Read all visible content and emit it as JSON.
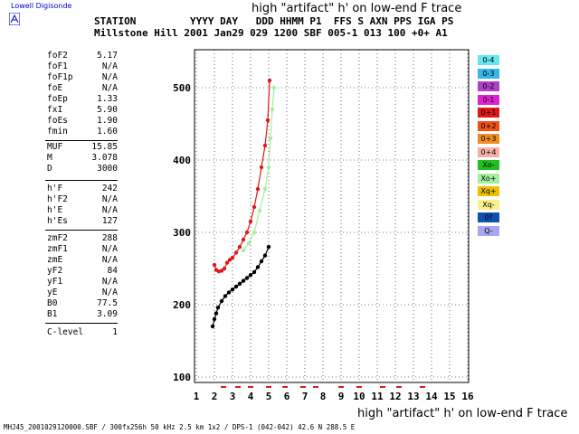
{
  "logo": {
    "text": "Lowell Digisonde"
  },
  "header": {
    "row1": "STATION         YYYY DAY   DDD HHMM P1  FFS S AXN PPS IGA PS",
    "row2": "Millstone Hill 2001 Jan29 029 1200 SBF 005-1 013 100 +0+ A1"
  },
  "title_top": "high \"artifact\" h' on low-end F trace",
  "title_bottom": "high \"artifact\" h' on low-end F trace",
  "params": [
    {
      "key": "foF2",
      "val": "5.17"
    },
    {
      "key": "foF1",
      "val": "N/A"
    },
    {
      "key": "foF1p",
      "val": "N/A"
    },
    {
      "key": "foE",
      "val": "N/A"
    },
    {
      "key": "foEp",
      "val": "1.33"
    },
    {
      "key": "fxI",
      "val": "5.90"
    },
    {
      "key": "foEs",
      "val": "1.90"
    },
    {
      "key": "fmin",
      "val": "1.60"
    },
    {
      "key": "MUF",
      "val": "15.85"
    },
    {
      "key": "M",
      "val": "3.078"
    },
    {
      "key": "D",
      "val": "3000"
    },
    {
      "key": "h'F",
      "val": "242"
    },
    {
      "key": "h'F2",
      "val": "N/A"
    },
    {
      "key": "h'E",
      "val": "N/A"
    },
    {
      "key": "h'Es",
      "val": "127"
    },
    {
      "key": "zmF2",
      "val": "288"
    },
    {
      "key": "zmF1",
      "val": "N/A"
    },
    {
      "key": "zmE",
      "val": "N/A"
    },
    {
      "key": "yF2",
      "val": "84"
    },
    {
      "key": "yF1",
      "val": "N/A"
    },
    {
      "key": "yE",
      "val": "N/A"
    },
    {
      "key": "B0",
      "val": "77.5"
    },
    {
      "key": "B1",
      "val": "3.09"
    },
    {
      "key": "C-level",
      "val": "1"
    }
  ],
  "legend": [
    {
      "label": "0-4",
      "color": "#66e6f0"
    },
    {
      "label": "0-3",
      "color": "#33b8e8"
    },
    {
      "label": "0-2",
      "color": "#b040c8"
    },
    {
      "label": "0-1",
      "color": "#e020d0"
    },
    {
      "label": "0+1",
      "color": "#e01818"
    },
    {
      "label": "0+2",
      "color": "#f05010"
    },
    {
      "label": "0+3",
      "color": "#f08c20"
    },
    {
      "label": "0+4",
      "color": "#f8b0a8"
    },
    {
      "label": "Xo-",
      "color": "#20c020"
    },
    {
      "label": "Xo+",
      "color": "#a0f0a0"
    },
    {
      "label": "Xq+",
      "color": "#f0c000"
    },
    {
      "label": "Xq-",
      "color": "#f8f088"
    },
    {
      "label": "0?",
      "color": "#1050b0"
    },
    {
      "label": "Q-",
      "color": "#a8a8f0"
    }
  ],
  "footer": "MHJ45_2001029120000.SBF / 300fx256h 50 kHz 2.5 km 1x2 / DPS-1 (042-042) 42.6 N 288.5 E",
  "chart_data": {
    "type": "scatter",
    "title": "high \"artifact\" h' on low-end F trace",
    "xlabel": "",
    "ylabel": "",
    "x_ticks": [
      1,
      2,
      3,
      4,
      5,
      6,
      7,
      8,
      9,
      10,
      11,
      12,
      13,
      14,
      15,
      16
    ],
    "y_ticks": [
      100,
      200,
      300,
      400,
      500
    ],
    "xlim": [
      1,
      16
    ],
    "ylim": [
      90,
      555
    ],
    "grid": true,
    "series": [
      {
        "color": "#e01818",
        "x": [
          2.0,
          2.1,
          2.25,
          2.4,
          2.55,
          2.7,
          2.85,
          3.0,
          3.2,
          3.4,
          3.6,
          3.8,
          4.0,
          4.2,
          4.4,
          4.6,
          4.8,
          4.95,
          5.05
        ],
        "y": [
          255,
          248,
          246,
          247,
          250,
          258,
          262,
          265,
          272,
          280,
          290,
          300,
          315,
          335,
          360,
          390,
          420,
          455,
          510
        ]
      },
      {
        "color": "#000000",
        "x": [
          1.9,
          2.0,
          2.1,
          2.2,
          2.4,
          2.6,
          2.8,
          3.0,
          3.2,
          3.4,
          3.6,
          3.8,
          4.0,
          4.2,
          4.4,
          4.6,
          4.8,
          5.0
        ],
        "y": [
          170,
          180,
          188,
          196,
          205,
          212,
          217,
          221,
          225,
          229,
          233,
          237,
          241,
          245,
          252,
          260,
          268,
          280
        ]
      },
      {
        "color": "#a0f0a0",
        "x": [
          3.6,
          3.9,
          4.2,
          4.5,
          4.8,
          5.0,
          5.1,
          5.2,
          5.3
        ],
        "y": [
          275,
          285,
          300,
          330,
          360,
          390,
          430,
          470,
          500
        ]
      }
    ]
  }
}
